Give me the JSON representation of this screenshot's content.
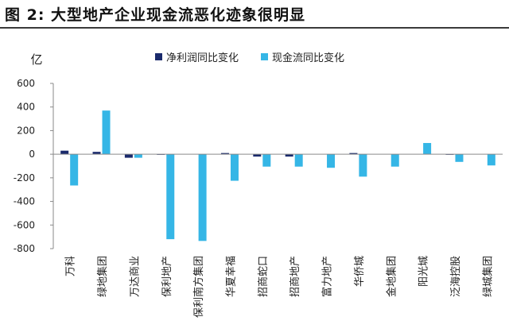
{
  "page": {
    "title": "图 2:  大型地产企业现金流恶化迹象很明显"
  },
  "chart_data": {
    "type": "bar",
    "title": "图 2:  大型地产企业现金流恶化迹象很明显",
    "ylabel": "亿",
    "xlabel": "",
    "ylim": [
      -800,
      600
    ],
    "yticks": [
      600,
      400,
      200,
      0,
      -200,
      -400,
      -600,
      -800
    ],
    "categories": [
      "万科",
      "绿地集团",
      "万达商业",
      "保利地产",
      "保利南方集团",
      "华夏幸福",
      "招商蛇口",
      "招商地产",
      "富力地产",
      "华侨城",
      "金地集团",
      "阳光城",
      "泛海控股",
      "绿城集团"
    ],
    "series": [
      {
        "name": "净利润同比变化",
        "color": "#1a2a6c",
        "values": [
          30,
          20,
          -30,
          -5,
          0,
          10,
          -20,
          -20,
          0,
          10,
          0,
          0,
          -5,
          0
        ]
      },
      {
        "name": "现金流同比变化",
        "color": "#35b6e6",
        "values": [
          -265,
          370,
          -30,
          -720,
          -735,
          -225,
          -105,
          -105,
          -115,
          -190,
          -105,
          95,
          -65,
          -95
        ]
      }
    ],
    "legend_position": "top-center",
    "grid": false
  }
}
